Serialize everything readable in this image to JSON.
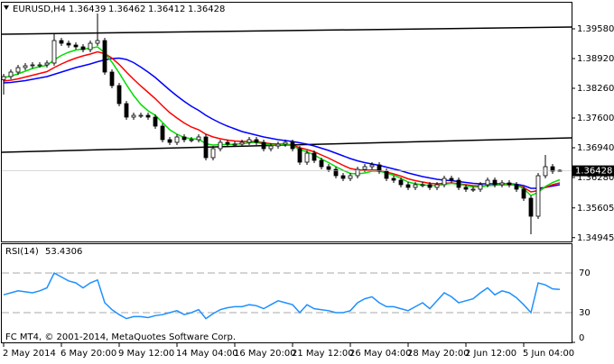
{
  "chart_data": [
    {
      "type": "candlestick",
      "title": "EURUSD,H4",
      "categories": [
        "2 May 2014",
        null,
        null,
        null,
        null,
        null,
        null,
        null,
        "6 May 20:00",
        null,
        null,
        null,
        null,
        null,
        null,
        null,
        "9 May 12:00",
        null,
        null,
        null,
        null,
        null,
        null,
        null,
        "14 May 04:00",
        null,
        null,
        null,
        null,
        null,
        null,
        null,
        "16 May 20:00",
        null,
        null,
        null,
        null,
        null,
        null,
        null,
        "21 May 12:00",
        null,
        null,
        null,
        null,
        null,
        null,
        null,
        "26 May 04:00",
        null,
        null,
        null,
        null,
        null,
        null,
        null,
        "28 May 20:00",
        null,
        null,
        null,
        null,
        null,
        null,
        null,
        "2 Jun 12:00",
        null,
        null,
        null,
        null,
        null,
        null,
        null,
        "5 Jun 04:00",
        null,
        null,
        null,
        null,
        null
      ],
      "open": [
        1.3845,
        1.3852,
        1.3862,
        1.3872,
        1.3876,
        1.3878,
        1.3878,
        1.3882,
        1.3932,
        1.3926,
        1.3922,
        1.3918,
        1.3912,
        1.3926,
        1.3932,
        1.3862,
        1.3832,
        1.3792,
        1.3762,
        1.3766,
        1.3766,
        1.3762,
        1.3742,
        1.3712,
        1.3706,
        1.3718,
        1.3712,
        1.3712,
        1.3718,
        1.3672,
        1.3692,
        1.3706,
        1.3702,
        1.3702,
        1.3706,
        1.3712,
        1.3706,
        1.3692,
        1.3698,
        1.3702,
        1.3706,
        1.3692,
        1.3662,
        1.3682,
        1.3666,
        1.3652,
        1.3646,
        1.3632,
        1.3626,
        1.3632,
        1.3646,
        1.3652,
        1.3656,
        1.3642,
        1.3626,
        1.3622,
        1.3612,
        1.3606,
        1.3612,
        1.3612,
        1.3606,
        1.3612,
        1.3626,
        1.3622,
        1.3606,
        1.3602,
        1.3602,
        1.3612,
        1.3622,
        1.3612,
        1.3616,
        1.3612,
        1.3602,
        1.3582,
        1.3542,
        1.3632,
        1.3652,
        1.36439
      ],
      "high": [
        1.3858,
        1.3868,
        1.3878,
        1.3882,
        1.3884,
        1.3884,
        1.3888,
        1.3946,
        1.3938,
        1.3932,
        1.3928,
        1.3924,
        1.3932,
        1.3992,
        1.3938,
        1.3868,
        1.3838,
        1.3798,
        1.3772,
        1.3772,
        1.3772,
        1.3768,
        1.3748,
        1.3718,
        1.3724,
        1.3724,
        1.3718,
        1.3724,
        1.3724,
        1.3698,
        1.3712,
        1.3712,
        1.3708,
        1.3712,
        1.3718,
        1.3718,
        1.3712,
        1.3704,
        1.3708,
        1.3712,
        1.3712,
        1.3698,
        1.3688,
        1.3688,
        1.3672,
        1.3658,
        1.3652,
        1.3638,
        1.3638,
        1.3652,
        1.3658,
        1.3662,
        1.3662,
        1.3648,
        1.3632,
        1.3628,
        1.3618,
        1.3618,
        1.3618,
        1.3618,
        1.3618,
        1.3632,
        1.3632,
        1.3628,
        1.3612,
        1.3608,
        1.3618,
        1.3628,
        1.3628,
        1.3622,
        1.3622,
        1.3618,
        1.3608,
        1.3588,
        1.3638,
        1.3678,
        1.3658,
        1.36462
      ],
      "low": [
        1.3812,
        1.3846,
        1.3856,
        1.3866,
        1.387,
        1.3872,
        1.3872,
        1.3876,
        1.392,
        1.3916,
        1.3912,
        1.3906,
        1.3906,
        1.392,
        1.3856,
        1.3826,
        1.3786,
        1.3756,
        1.3756,
        1.376,
        1.3756,
        1.3736,
        1.3706,
        1.37,
        1.37,
        1.3706,
        1.3706,
        1.3706,
        1.3666,
        1.3666,
        1.3686,
        1.3696,
        1.3696,
        1.3696,
        1.37,
        1.37,
        1.3686,
        1.3686,
        1.3692,
        1.3696,
        1.3686,
        1.3656,
        1.3656,
        1.366,
        1.3646,
        1.364,
        1.3626,
        1.362,
        1.362,
        1.3626,
        1.364,
        1.3646,
        1.3636,
        1.362,
        1.3616,
        1.3606,
        1.36,
        1.36,
        1.3606,
        1.36,
        1.36,
        1.3606,
        1.3616,
        1.36,
        1.3596,
        1.3596,
        1.3596,
        1.3606,
        1.3606,
        1.3606,
        1.3606,
        1.3596,
        1.3576,
        1.3502,
        1.3536,
        1.3626,
        1.3636,
        1.36412
      ],
      "close": [
        1.3852,
        1.3862,
        1.3872,
        1.3876,
        1.3878,
        1.3878,
        1.3882,
        1.3932,
        1.3926,
        1.3922,
        1.3918,
        1.3912,
        1.3926,
        1.3932,
        1.3862,
        1.3832,
        1.3792,
        1.3762,
        1.3766,
        1.3766,
        1.3762,
        1.3742,
        1.3712,
        1.3706,
        1.3718,
        1.3712,
        1.3712,
        1.3718,
        1.3672,
        1.3692,
        1.3706,
        1.3702,
        1.3702,
        1.3706,
        1.3712,
        1.3706,
        1.3692,
        1.3698,
        1.3702,
        1.3706,
        1.3692,
        1.3662,
        1.3682,
        1.3666,
        1.3652,
        1.3646,
        1.3632,
        1.3626,
        1.3632,
        1.3646,
        1.3652,
        1.3656,
        1.3642,
        1.3626,
        1.3622,
        1.3612,
        1.3606,
        1.3612,
        1.3612,
        1.3606,
        1.3612,
        1.3626,
        1.3622,
        1.3606,
        1.3602,
        1.3602,
        1.3612,
        1.3622,
        1.3612,
        1.3616,
        1.3612,
        1.3602,
        1.3582,
        1.3542,
        1.3632,
        1.3652,
        1.3642,
        1.36428
      ],
      "series": [
        {
          "color": "#0000ff",
          "values": [
            1.3838,
            1.3839,
            1.3841,
            1.3843,
            1.3846,
            1.3849,
            1.3852,
            1.3857,
            1.3862,
            1.3867,
            1.3872,
            1.3876,
            1.388,
            1.3885,
            1.3889,
            1.3892,
            1.3893,
            1.389,
            1.3883,
            1.3873,
            1.3862,
            1.385,
            1.3836,
            1.3822,
            1.3809,
            1.3797,
            1.3786,
            1.3777,
            1.3766,
            1.3757,
            1.3749,
            1.3742,
            1.3736,
            1.373,
            1.3726,
            1.3722,
            1.3718,
            1.3715,
            1.3712,
            1.371,
            1.3708,
            1.3705,
            1.3702,
            1.3698,
            1.3693,
            1.3688,
            1.3682,
            1.3676,
            1.367,
            1.3665,
            1.3661,
            1.3658,
            1.3655,
            1.3651,
            1.3647,
            1.3643,
            1.3638,
            1.3634,
            1.363,
            1.3627,
            1.3624,
            1.3622,
            1.3621,
            1.3619,
            1.3617,
            1.3615,
            1.3614,
            1.3614,
            1.3614,
            1.3614,
            1.3614,
            1.3613,
            1.361,
            1.3604,
            1.3604,
            1.3606,
            1.3609,
            1.3612
          ]
        },
        {
          "color": "#ff0000",
          "values": [
            1.3842,
            1.3844,
            1.3847,
            1.3851,
            1.3855,
            1.3859,
            1.3863,
            1.3872,
            1.388,
            1.3887,
            1.3893,
            1.3898,
            1.3902,
            1.3907,
            1.3903,
            1.3893,
            1.3879,
            1.3862,
            1.3846,
            1.3831,
            1.3817,
            1.3803,
            1.3787,
            1.3772,
            1.376,
            1.3749,
            1.374,
            1.3734,
            1.3724,
            1.3718,
            1.3714,
            1.3711,
            1.3709,
            1.3708,
            1.3708,
            1.3708,
            1.3705,
            1.3703,
            1.3702,
            1.3702,
            1.37,
            1.3694,
            1.369,
            1.3685,
            1.3678,
            1.3671,
            1.3663,
            1.3655,
            1.3648,
            1.3645,
            1.3644,
            1.3645,
            1.3644,
            1.364,
            1.3636,
            1.3631,
            1.3625,
            1.3621,
            1.3618,
            1.3615,
            1.3614,
            1.3615,
            1.3616,
            1.3614,
            1.3612,
            1.361,
            1.3609,
            1.361,
            1.3611,
            1.3612,
            1.3612,
            1.3611,
            1.3606,
            1.3596,
            1.3599,
            1.3606,
            1.3612,
            1.3616
          ]
        },
        {
          "color": "#00dd00",
          "values": [
            1.385,
            1.3853,
            1.3858,
            1.3864,
            1.387,
            1.3874,
            1.3877,
            1.3889,
            1.3899,
            1.3906,
            1.3911,
            1.3913,
            1.3915,
            1.3918,
            1.3905,
            1.3884,
            1.386,
            1.3834,
            1.381,
            1.379,
            1.3776,
            1.3766,
            1.375,
            1.3734,
            1.3724,
            1.3717,
            1.3714,
            1.3713,
            1.3703,
            1.37,
            1.3701,
            1.3701,
            1.3702,
            1.3703,
            1.3705,
            1.3706,
            1.3702,
            1.37,
            1.37,
            1.3701,
            1.3699,
            1.369,
            1.3685,
            1.3678,
            1.3669,
            1.3661,
            1.3652,
            1.3644,
            1.3637,
            1.3636,
            1.3638,
            1.3642,
            1.3642,
            1.3638,
            1.3633,
            1.3626,
            1.3618,
            1.3614,
            1.3612,
            1.361,
            1.361,
            1.3613,
            1.3615,
            1.3613,
            1.361,
            1.3607,
            1.3607,
            1.361,
            1.3611,
            1.3613,
            1.3613,
            1.3611,
            1.3603,
            1.3588,
            1.3595,
            1.3608,
            1.3617,
            1.3623
          ]
        }
      ],
      "ylim": [
        1.3486,
        1.4016
      ],
      "yticks": [
        {
          "value": 1.3958,
          "label": "1.39580"
        },
        {
          "value": 1.3892,
          "label": "1.38920"
        },
        {
          "value": 1.3826,
          "label": "1.38260"
        },
        {
          "value": 1.376,
          "label": "1.37600"
        },
        {
          "value": 1.3694,
          "label": "1.36940"
        },
        {
          "value": 1.3628,
          "label": "1.36280"
        },
        1.35605,
        1.34945
      ]
    },
    {
      "type": "line",
      "title": "RSI(14)",
      "color": "#1e90ff",
      "values": [
        48,
        50,
        52,
        51,
        50,
        52,
        55,
        70,
        66,
        62,
        60,
        55,
        60,
        63,
        40,
        33,
        28,
        24,
        26,
        26,
        25,
        27,
        28,
        30,
        32,
        28,
        30,
        33,
        24,
        29,
        33,
        35,
        36,
        36,
        38,
        37,
        34,
        38,
        42,
        40,
        38,
        30,
        38,
        34,
        33,
        32,
        30,
        30,
        32,
        40,
        44,
        46,
        40,
        36,
        36,
        34,
        32,
        36,
        40,
        34,
        42,
        50,
        46,
        40,
        42,
        44,
        50,
        55,
        48,
        52,
        50,
        45,
        38,
        30,
        60,
        58,
        54,
        53.4306
      ],
      "ylim": [
        0,
        100
      ],
      "yticks": [
        0,
        30,
        70
      ],
      "grid": "dashed"
    }
  ],
  "footer": "FC MT4, © 2001-2014, MetaQuotes Software Corp."
}
